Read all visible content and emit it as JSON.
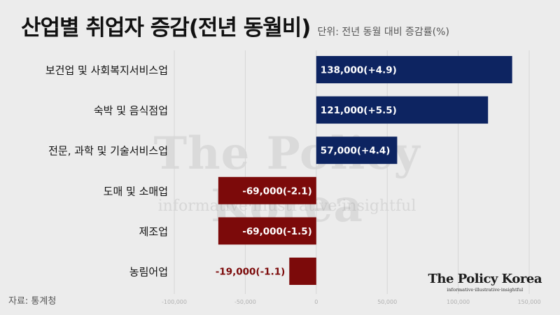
{
  "header": {
    "title": "산업별 취업자 증감(전년 동월비)",
    "unit": "단위: 전년 동월 대비 증감률(%)"
  },
  "watermark": {
    "name": "The Policy Korea",
    "tagline": "informative·illustrative·insightful"
  },
  "footer": {
    "source": "자료: 통계청",
    "brand_name": "The Policy Korea",
    "brand_tagline": "informative·illustrative·insightful"
  },
  "colors": {
    "positive": "#0d2461",
    "negative": "#7c0a0a",
    "grid": "#d6d6d6"
  },
  "chart_data": {
    "type": "bar",
    "orientation": "horizontal",
    "categories": [
      "보건업 및 사회복지서비스업",
      "숙박 및 음식점업",
      "전문, 과학 및 기술서비스업",
      "도매 및 소매업",
      "제조업",
      "농림어업"
    ],
    "values": [
      138000,
      121000,
      57000,
      -69000,
      -69000,
      -19000
    ],
    "data_labels": [
      "138,000(+4.9)",
      "121,000(+5.5)",
      "57,000(+4.4)",
      "-69,000(-2.1)",
      "-69,000(-1.5)",
      "-19,000(-1.1)"
    ],
    "percent_change": [
      4.9,
      5.5,
      4.4,
      -2.1,
      -1.5,
      -1.1
    ],
    "xlim": [
      -100000,
      150000
    ],
    "xticks": [
      -100000,
      -50000,
      0,
      50000,
      100000,
      150000
    ],
    "xtick_labels": [
      "-100,000",
      "-50,000",
      "0",
      "50,000",
      "100,000",
      "150,000"
    ],
    "grid": true
  }
}
